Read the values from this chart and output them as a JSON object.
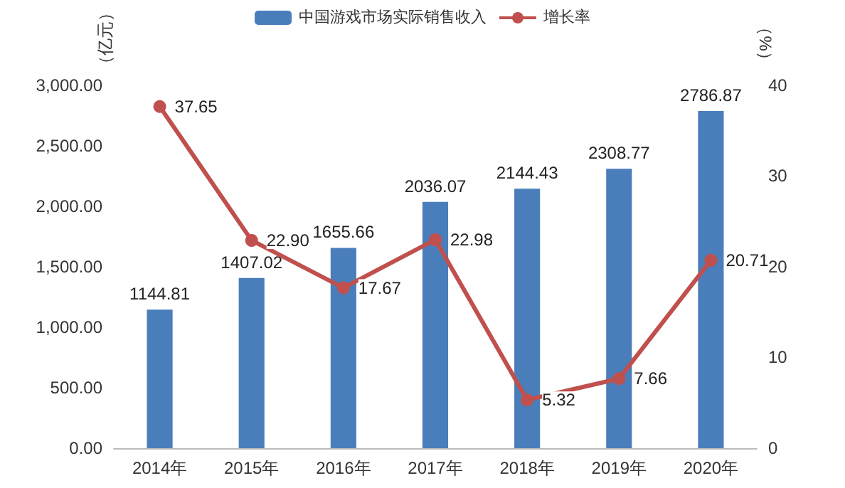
{
  "chart_data": {
    "type": "bar",
    "categories": [
      "2014年",
      "2015年",
      "2016年",
      "2017年",
      "2018年",
      "2019年",
      "2020年"
    ],
    "series": [
      {
        "name": "中国游戏市场实际销售收入",
        "color": "#4a7ebb",
        "values": [
          1144.81,
          1407.02,
          1655.66,
          2036.07,
          2144.43,
          2308.77,
          2786.87
        ],
        "value_labels": [
          "1144.81",
          "1407.02",
          "1655.66",
          "2036.07",
          "2144.43",
          "2308.77",
          "2786.87"
        ]
      },
      {
        "name": "增长率",
        "type": "line",
        "axis": "y2",
        "color": "#c0504d",
        "values": [
          37.65,
          22.9,
          17.67,
          22.98,
          5.32,
          7.66,
          20.71
        ],
        "value_labels": [
          "37.65",
          "22.90",
          "17.67",
          "22.98",
          "5.32",
          "7.66",
          "20.71"
        ]
      }
    ],
    "ylabel": "（亿元）",
    "y2label": "（%）",
    "ylim": [
      0,
      3000
    ],
    "yticks": [
      {
        "value": 0,
        "label": "0.00"
      },
      {
        "value": 500,
        "label": "500.00"
      },
      {
        "value": 1000,
        "label": "1,000.00"
      },
      {
        "value": 1500,
        "label": "1,500.00"
      },
      {
        "value": 2000,
        "label": "2,000.00"
      },
      {
        "value": 2500,
        "label": "2,500.00"
      },
      {
        "value": 3000,
        "label": "3,000.00"
      }
    ],
    "y2lim": [
      0,
      40
    ],
    "y2ticks": [
      0,
      10,
      20,
      30,
      40
    ],
    "legend": "top",
    "grid": false,
    "marker": "circle",
    "line_style": "solid"
  }
}
